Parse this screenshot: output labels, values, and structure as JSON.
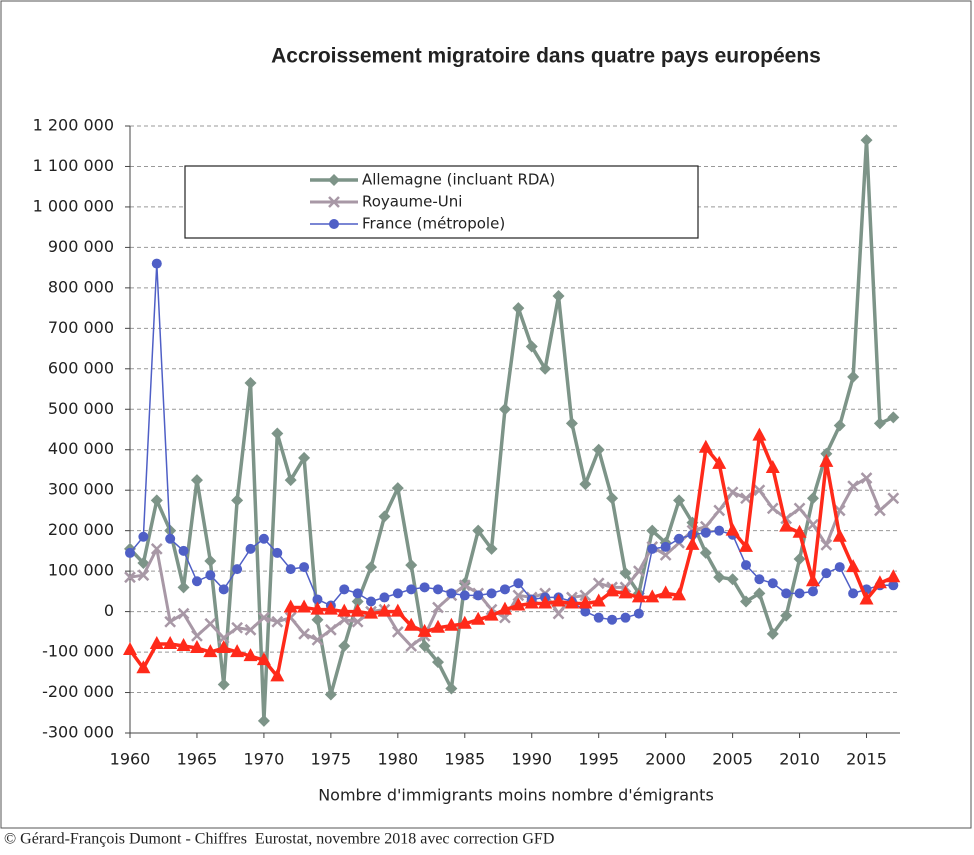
{
  "chart_data": {
    "type": "line",
    "title": "Accroissement migratoire dans quatre pays européens",
    "x_label": "Nombre d'immigrants moins nombre d'émigrants",
    "source": "© Gérard-François Dumont - Chiffres  Eurostat, novembre 2018 avec correction GFD",
    "x": [
      1960,
      1961,
      1962,
      1963,
      1964,
      1965,
      1966,
      1967,
      1968,
      1969,
      1970,
      1971,
      1972,
      1973,
      1974,
      1975,
      1976,
      1977,
      1978,
      1979,
      1980,
      1981,
      1982,
      1983,
      1984,
      1985,
      1986,
      1987,
      1988,
      1989,
      1990,
      1991,
      1992,
      1993,
      1994,
      1995,
      1996,
      1997,
      1998,
      1999,
      2000,
      2001,
      2002,
      2003,
      2004,
      2005,
      2006,
      2007,
      2008,
      2009,
      2010,
      2011,
      2012,
      2013,
      2014,
      2015,
      2016,
      2017
    ],
    "xlim": [
      1960,
      2017.5
    ],
    "xticks": [
      1960,
      1965,
      1970,
      1975,
      1980,
      1985,
      1990,
      1995,
      2000,
      2005,
      2010,
      2015
    ],
    "ylim": [
      -300000,
      1200000
    ],
    "yticks": [
      {
        "value": -300000,
        "label": "-300 000"
      },
      {
        "value": -200000,
        "label": "-200 000"
      },
      {
        "value": -100000,
        "label": "-100 000"
      },
      0,
      {
        "value": 100000,
        "label": "100 000"
      },
      {
        "value": 200000,
        "label": "200 000"
      },
      {
        "value": 300000,
        "label": "300 000"
      },
      {
        "value": 400000,
        "label": "400 000"
      },
      {
        "value": 500000,
        "label": "500 000"
      },
      {
        "value": 600000,
        "label": "600 000"
      },
      {
        "value": 700000,
        "label": "700 000"
      },
      {
        "value": 800000,
        "label": "800 000"
      },
      {
        "value": 900000,
        "label": "900 000"
      },
      {
        "value": 1000000,
        "label": "1 000 000"
      },
      {
        "value": 1100000,
        "label": "1 100 000"
      },
      {
        "value": 1200000,
        "label": "1 200 000"
      }
    ],
    "grid": true,
    "series": [
      {
        "name": "Allemagne (incluant RDA)",
        "color": "#7d9488",
        "marker": "diamond",
        "values": [
          155000,
          120000,
          275000,
          200000,
          60000,
          325000,
          125000,
          -180000,
          275000,
          565000,
          -270000,
          440000,
          325000,
          380000,
          -20000,
          -205000,
          -85000,
          25000,
          110000,
          235000,
          305000,
          115000,
          -85000,
          -125000,
          -190000,
          70000,
          200000,
          155000,
          500000,
          750000,
          655000,
          600000,
          780000,
          465000,
          315000,
          400000,
          280000,
          95000,
          45000,
          200000,
          170000,
          275000,
          220000,
          145000,
          85000,
          80000,
          25000,
          45000,
          -55000,
          -10000,
          130000,
          280000,
          390000,
          460000,
          580000,
          1165000,
          465000,
          480000
        ]
      },
      {
        "name": "Royaume-Uni",
        "color": "#a898a6",
        "marker": "cross",
        "values": [
          85000,
          90000,
          155000,
          -25000,
          -5000,
          -60000,
          -30000,
          -65000,
          -40000,
          -45000,
          -15000,
          -25000,
          -15000,
          -55000,
          -70000,
          -45000,
          -20000,
          -25000,
          0,
          5000,
          -50000,
          -85000,
          -60000,
          10000,
          40000,
          65000,
          45000,
          5000,
          -15000,
          40000,
          35000,
          45000,
          -5000,
          35000,
          40000,
          70000,
          60000,
          60000,
          100000,
          160000,
          140000,
          170000,
          200000,
          210000,
          250000,
          295000,
          280000,
          300000,
          255000,
          230000,
          255000,
          215000,
          165000,
          250000,
          310000,
          330000,
          250000,
          280000
        ]
      },
      {
        "name": "France (métropole)",
        "color": "#4f5fc6",
        "marker": "circle",
        "values": [
          145000,
          185000,
          860000,
          180000,
          150000,
          75000,
          90000,
          55000,
          105000,
          155000,
          180000,
          145000,
          105000,
          110000,
          30000,
          15000,
          55000,
          45000,
          25000,
          35000,
          45000,
          55000,
          60000,
          55000,
          45000,
          40000,
          40000,
          45000,
          55000,
          70000,
          30000,
          35000,
          35000,
          25000,
          0,
          -15000,
          -20000,
          -15000,
          -5000,
          155000,
          160000,
          180000,
          190000,
          195000,
          200000,
          190000,
          115000,
          80000,
          70000,
          45000,
          45000,
          50000,
          95000,
          110000,
          45000,
          55000,
          65000,
          65000
        ]
      },
      {
        "color": "#ff2a1a",
        "marker": "triangle",
        "values": [
          -95000,
          -140000,
          -80000,
          -80000,
          -85000,
          -90000,
          -100000,
          -90000,
          -100000,
          -110000,
          -120000,
          -160000,
          10000,
          10000,
          5000,
          5000,
          0,
          0,
          -5000,
          0,
          0,
          -35000,
          -50000,
          -40000,
          -35000,
          -30000,
          -20000,
          -10000,
          5000,
          15000,
          20000,
          20000,
          25000,
          20000,
          20000,
          25000,
          50000,
          45000,
          35000,
          35000,
          45000,
          40000,
          165000,
          405000,
          365000,
          200000,
          160000,
          435000,
          355000,
          210000,
          195000,
          75000,
          370000,
          185000,
          110000,
          30000,
          70000,
          85000
        ]
      }
    ]
  }
}
